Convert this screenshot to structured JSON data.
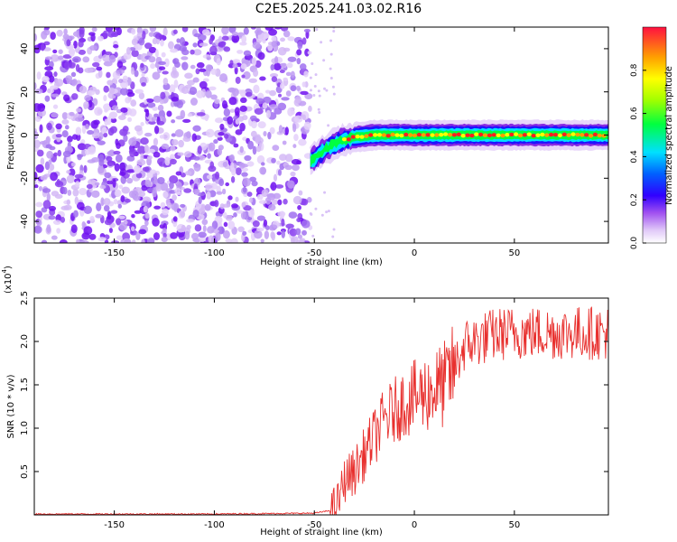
{
  "title": "C2E5.2025.241.03.02.R16",
  "colors": {
    "axis": "#000000",
    "snr_line": "#e8302e",
    "scatter_purple": "#7a1cf0",
    "scatter_light": "#d9c2f7"
  },
  "chart_data": [
    {
      "type": "heatmap",
      "name": "spectrogram",
      "xlabel": "Height of straight line (km)",
      "ylabel": "Frequency (Hz)",
      "xlim": [
        -190,
        97
      ],
      "ylim": [
        -50,
        50
      ],
      "xticks": [
        -150,
        -100,
        -50,
        0,
        50
      ],
      "yticks": [
        -40,
        -20,
        0,
        20,
        40
      ],
      "colorbar": {
        "label": "Normalized spectral amplitude",
        "range": [
          0,
          1
        ],
        "ticks": [
          "0.0",
          "0.2",
          "0.4",
          "0.6",
          "0.8"
        ],
        "colormap": [
          "#ffffff",
          "#e0c8f8",
          "#8a2be2",
          "#3000ff",
          "#0060ff",
          "#00e0ff",
          "#00ff60",
          "#80ff00",
          "#ffff00",
          "#ffa000",
          "#ff2020"
        ]
      },
      "regions": [
        {
          "description": "noise",
          "x_range": [
            -190,
            -52
          ],
          "freq_range": [
            -50,
            50
          ],
          "amplitude": 0.12
        },
        {
          "description": "signal",
          "x_range": [
            -52,
            97
          ],
          "freq_center": 0,
          "amplitude_peak": 1.0
        }
      ],
      "signal_track": [
        {
          "x": -52,
          "freq": -12
        },
        {
          "x": -45,
          "freq": -7
        },
        {
          "x": -38,
          "freq": -3
        },
        {
          "x": -30,
          "freq": -1
        },
        {
          "x": -20,
          "freq": 0
        },
        {
          "x": 0,
          "freq": 0
        },
        {
          "x": 50,
          "freq": 0
        },
        {
          "x": 97,
          "freq": 0
        }
      ]
    },
    {
      "type": "line",
      "name": "snr",
      "xlabel": "Height of straight line (km)",
      "ylabel": "SNR (10 * v/v)",
      "y_multiplier": "(x10",
      "y_multiplier_exp": "4",
      "xlim": [
        -190,
        97
      ],
      "ylim": [
        0,
        2.5
      ],
      "xticks": [
        -150,
        -100,
        -50,
        0,
        50
      ],
      "yticks": [
        "0.5",
        "1.0",
        "1.5",
        "2.0",
        "2.5"
      ],
      "series": [
        {
          "x": [
            -190,
            -100,
            -50,
            -42,
            -38,
            -35,
            -30,
            -25,
            -20,
            -15,
            -10,
            -5,
            0,
            5,
            10,
            15,
            20,
            25,
            30,
            40,
            50,
            60,
            70,
            80,
            90,
            97
          ],
          "y": [
            0.01,
            0.01,
            0.02,
            0.05,
            0.15,
            0.4,
            0.5,
            0.7,
            0.9,
            1.1,
            1.2,
            1.3,
            1.35,
            1.4,
            1.45,
            1.5,
            1.7,
            1.95,
            2.0,
            2.08,
            2.1,
            2.1,
            2.1,
            2.1,
            2.1,
            2.1
          ]
        }
      ]
    }
  ]
}
